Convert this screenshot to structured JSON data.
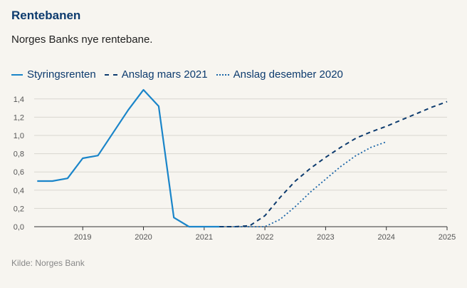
{
  "title": "Rentebanen",
  "subtitle": "Norges Banks nye rentebane.",
  "source": "Kilde: Norges Bank",
  "colors": {
    "actual": "#1a85c9",
    "march2021": "#0d3b6e",
    "dec2020": "#1a65a8"
  },
  "chart_data": {
    "type": "line",
    "title": "Rentebanen",
    "xlabel": "",
    "ylabel": "",
    "xlim": [
      2018.2,
      2025.0
    ],
    "ylim": [
      0,
      1.5
    ],
    "yticks": [
      0.0,
      0.2,
      0.4,
      0.6,
      0.8,
      1.0,
      1.2,
      1.4
    ],
    "ytick_labels": [
      "0,0",
      "0,2",
      "0,4",
      "0,6",
      "0,8",
      "1,0",
      "1,2",
      "1,4"
    ],
    "xticks": [
      2019,
      2020,
      2021,
      2022,
      2023,
      2024,
      2025
    ],
    "xtick_labels": [
      "2019",
      "2020",
      "2021",
      "2022",
      "2023",
      "2024",
      "2025"
    ],
    "grid": true,
    "series": [
      {
        "name": "Styringsrenten",
        "style": "solid",
        "x": [
          2018.25,
          2018.5,
          2018.75,
          2019.0,
          2019.25,
          2019.5,
          2019.75,
          2020.0,
          2020.25,
          2020.5,
          2020.75,
          2021.0,
          2021.25
        ],
        "y": [
          0.5,
          0.5,
          0.53,
          0.75,
          0.78,
          1.03,
          1.28,
          1.5,
          1.32,
          0.1,
          0.0,
          0.0,
          0.0
        ]
      },
      {
        "name": "Anslag mars 2021",
        "style": "dashed",
        "x": [
          2021.25,
          2021.5,
          2021.75,
          2022.0,
          2022.25,
          2022.5,
          2022.75,
          2023.0,
          2023.25,
          2023.5,
          2023.75,
          2024.0,
          2024.25,
          2024.5,
          2024.75,
          2025.0
        ],
        "y": [
          0.0,
          0.0,
          0.01,
          0.12,
          0.32,
          0.5,
          0.64,
          0.76,
          0.87,
          0.97,
          1.04,
          1.1,
          1.17,
          1.24,
          1.31,
          1.37
        ]
      },
      {
        "name": "Anslag desember 2020",
        "style": "dotted",
        "x": [
          2021.25,
          2021.5,
          2021.75,
          2022.0,
          2022.25,
          2022.5,
          2022.75,
          2023.0,
          2023.25,
          2023.5,
          2023.75,
          2024.0
        ],
        "y": [
          0.0,
          0.0,
          0.0,
          0.0,
          0.08,
          0.22,
          0.38,
          0.52,
          0.66,
          0.78,
          0.87,
          0.93
        ]
      }
    ]
  }
}
